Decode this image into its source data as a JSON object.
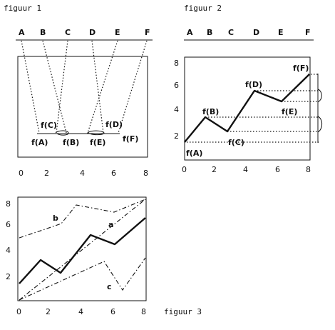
{
  "fig1": {
    "caption": "figuur 1",
    "top_letters": [
      "A",
      "B",
      "C",
      "D",
      "E",
      "F"
    ],
    "fx_labels": [
      "f(C)",
      "f(D)",
      "f(A)",
      "f(B)",
      "f(E)",
      "f(F)"
    ],
    "ticks": [
      "0",
      "2",
      "4",
      "6",
      "8"
    ]
  },
  "fig2": {
    "caption": "figuur 2",
    "top_letters": [
      "A",
      "B",
      "C",
      "D",
      "E",
      "F"
    ],
    "point_labels": [
      "f(B)",
      "f(D)",
      "f(F)",
      "f(E)",
      "f(C)",
      "f(A)"
    ],
    "x_ticks": [
      "0",
      "2",
      "4",
      "6",
      "8"
    ],
    "y_ticks": [
      "2",
      "4",
      "6",
      "8"
    ]
  },
  "fig3": {
    "caption": "figuur 3",
    "curve_labels": [
      "a",
      "b",
      "c"
    ],
    "x_ticks": [
      "0",
      "2",
      "4",
      "6",
      "8"
    ],
    "y_ticks": [
      "2",
      "4",
      "6",
      "8"
    ]
  }
}
